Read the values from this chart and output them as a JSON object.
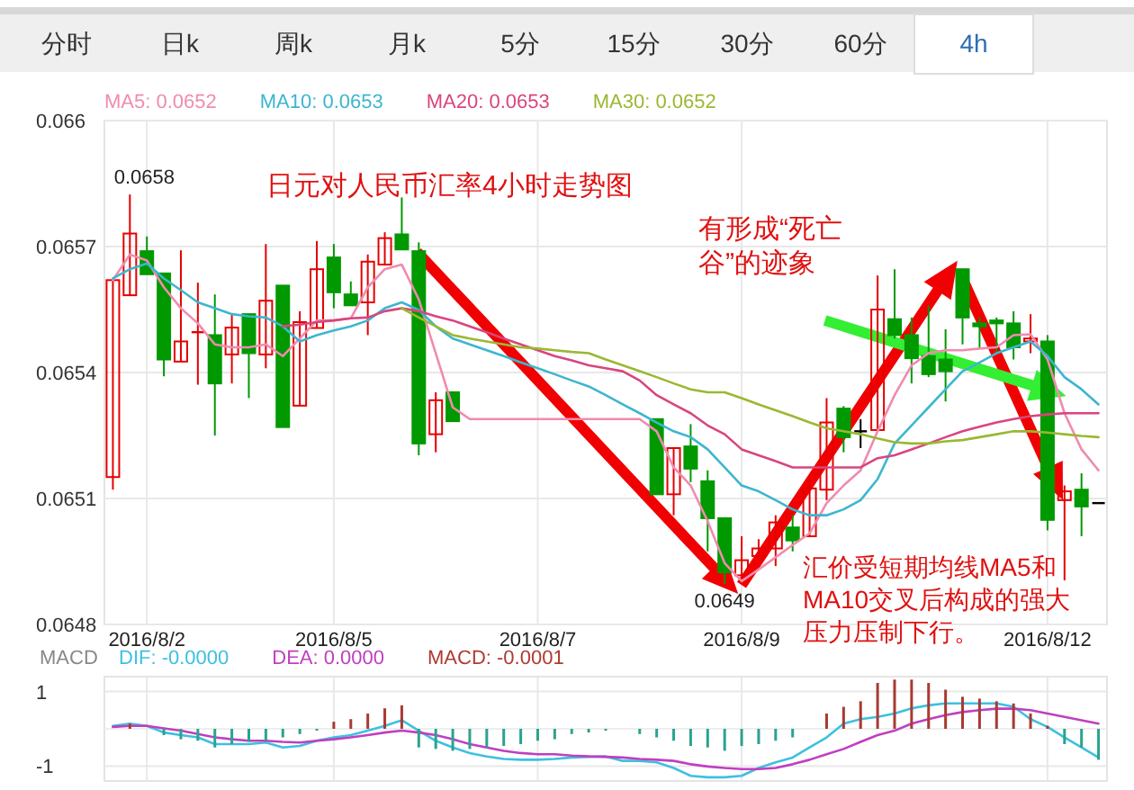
{
  "chart_data": [
    {
      "type": "other",
      "annotations": [
        "分时",
        "日k",
        "周k",
        "月k",
        "5分",
        "15分",
        "30分",
        "60分",
        "4h"
      ]
    },
    {
      "type": "candlestick",
      "title": "日元对人民币汇率4小时走势图",
      "categories": [
        null,
        null,
        "2016/8/2",
        null,
        null,
        null,
        null,
        null,
        null,
        null,
        null,
        null,
        null,
        "2016/8/5",
        null,
        null,
        null,
        null,
        null,
        null,
        null,
        null,
        null,
        null,
        null,
        "2016/8/7",
        null,
        null,
        null,
        null,
        null,
        null,
        null,
        null,
        null,
        null,
        null,
        "2016/8/9",
        null,
        null,
        null,
        null,
        null,
        null,
        null,
        null,
        null,
        null,
        null,
        null,
        null,
        null,
        null,
        null,
        null,
        "2016/8/12",
        null,
        null,
        null
      ],
      "ohlc": [
        [
          0.065151,
          0.06562,
          0.065121,
          0.06562
        ],
        [
          0.065584,
          0.065824,
          0.065584,
          0.065731
        ],
        [
          0.065689,
          0.065724,
          0.065634,
          0.065634
        ],
        [
          0.065636,
          0.065636,
          0.065391,
          0.065431
        ],
        [
          0.065426,
          0.065691,
          0.065426,
          0.065474
        ],
        [
          0.065496,
          0.065614,
          0.065371,
          0.065496
        ],
        [
          0.065489,
          0.065586,
          0.06525,
          0.065374
        ],
        [
          0.065443,
          0.06554,
          0.065374,
          0.065507
        ],
        [
          0.065539,
          0.065539,
          0.065339,
          0.065446
        ],
        [
          0.065443,
          0.065706,
          0.06541,
          0.065571
        ],
        [
          0.065607,
          0.065607,
          0.06527,
          0.06527
        ],
        [
          0.065321,
          0.065546,
          0.065321,
          0.06552
        ],
        [
          0.065506,
          0.065713,
          0.065506,
          0.065646
        ],
        [
          0.065674,
          0.065706,
          0.065553,
          0.065591
        ],
        [
          0.065586,
          0.065617,
          0.06556,
          0.06556
        ],
        [
          0.065567,
          0.065681,
          0.065489,
          0.065664
        ],
        [
          0.065657,
          0.065734,
          0.065657,
          0.06572
        ],
        [
          0.065729,
          0.065817,
          0.065693,
          0.065693
        ],
        [
          0.065689,
          0.06571,
          0.065203,
          0.065231
        ],
        [
          0.065253,
          0.065353,
          0.06521,
          0.065334
        ],
        [
          0.065353,
          0.065353,
          0.065284,
          0.065284
        ],
        null,
        null,
        null,
        null,
        null,
        null,
        null,
        null,
        null,
        null,
        null,
        [
          0.065289,
          0.065289,
          0.06511,
          0.06511
        ],
        [
          0.06511,
          0.06522,
          0.06506,
          0.06522
        ],
        [
          0.065224,
          0.065277,
          0.065139,
          0.065171
        ],
        [
          0.065141,
          0.065167,
          0.064974,
          0.065053
        ],
        [
          0.065053,
          0.065053,
          0.064896,
          0.064924
        ],
        [
          0.064917,
          0.06501,
          0.064903,
          0.064953
        ],
        [
          0.064963,
          0.065003,
          0.06496,
          0.064981
        ],
        [
          0.064981,
          0.06506,
          0.064939,
          0.065043
        ],
        [
          0.065031,
          0.06506,
          0.064974,
          0.065
        ],
        [
          0.06501,
          0.065146,
          0.06501,
          0.065124
        ],
        [
          0.065121,
          0.065339,
          0.065096,
          0.065281
        ],
        [
          0.065314,
          0.06532,
          0.06521,
          0.065246
        ],
        [
          0.06526,
          0.065289,
          0.06522,
          0.06526
        ],
        [
          0.065263,
          0.065631,
          0.065263,
          0.06555
        ],
        [
          0.065527,
          0.065646,
          0.065481,
          0.065489
        ],
        [
          0.065489,
          0.065531,
          0.065374,
          0.065434
        ],
        [
          0.065439,
          0.06556,
          0.065389,
          0.065396
        ],
        [
          0.065431,
          0.065503,
          0.065331,
          0.065403
        ],
        [
          0.065646,
          0.065646,
          0.065467,
          0.065531
        ],
        [
          0.065517,
          0.065531,
          0.06546,
          0.06551
        ],
        [
          0.065524,
          0.065531,
          0.065446,
          0.065517
        ],
        [
          0.065517,
          0.065546,
          0.065431,
          0.06546
        ],
        [
          0.065474,
          0.065539,
          0.065446,
          0.065481
        ],
        [
          0.065474,
          0.065489,
          0.065024,
          0.065049
        ],
        [
          0.065096,
          0.065131,
          0.064905,
          0.065117
        ],
        [
          0.065121,
          0.06516,
          0.06501,
          0.065081
        ],
        [
          0.065089,
          0.065089,
          0.065089,
          0.065089
        ]
      ],
      "colors": [
        "#e60000",
        "#e60000",
        "#009900",
        "#009900",
        "#e60000",
        "#e60000",
        "#009900",
        "#e60000",
        "#009900",
        "#e60000",
        "#009900",
        "#e60000",
        "#e60000",
        "#009900",
        "#009900",
        "#e60000",
        "#e60000",
        "#009900",
        "#009900",
        "#e60000",
        "#009900",
        null,
        null,
        null,
        null,
        null,
        null,
        null,
        null,
        null,
        null,
        null,
        "#009900",
        "#e60000",
        "#009900",
        "#009900",
        "#009900",
        "#e60000",
        "#e60000",
        "#e60000",
        "#009900",
        "#e60000",
        "#e60000",
        "#009900",
        "#000000",
        "#e60000",
        "#009900",
        "#009900",
        "#009900",
        "#009900",
        "#009900",
        "#009900",
        "#009900",
        "#009900",
        "#e60000",
        "#009900",
        "#e60000",
        "#009900",
        "#000000"
      ],
      "series": [
        {
          "name": "MA5: 0.0652",
          "type": "line",
          "color": "#f08bb0",
          "values": [
            0.06562,
            0.065681,
            0.065667,
            0.065603,
            0.065553,
            0.065517,
            0.065467,
            0.06546,
            0.06546,
            0.065467,
            0.065439,
            0.065481,
            0.065524,
            0.065524,
            0.065529,
            0.065603,
            0.065646,
            0.065657,
            0.065574,
            0.065446,
            0.065317,
            0.065289,
            0.065289,
            0.065289,
            0.065289,
            0.065289,
            0.065289,
            0.065289,
            0.065289,
            0.065289,
            0.065289,
            0.065289,
            0.06526,
            0.065174,
            0.065131,
            0.065046,
            0.064946,
            0.064903,
            0.064931,
            0.06496,
            0.064989,
            0.065017,
            0.065089,
            0.065131,
            0.065167,
            0.06526,
            0.065346,
            0.065417,
            0.065446,
            0.065453,
            0.065453,
            0.065457,
            0.06546,
            0.065489,
            0.065491,
            0.065431,
            0.065303,
            0.065217,
            0.065167
          ]
        },
        {
          "name": "MA10: 0.0653",
          "type": "line",
          "color": "#3cb6cf",
          "values": [
            0.065624,
            0.065646,
            0.06566,
            0.065624,
            0.065596,
            0.065567,
            0.065553,
            0.065539,
            0.065534,
            0.065531,
            0.06551,
            0.065474,
            0.065489,
            0.0655,
            0.06551,
            0.065524,
            0.065553,
            0.065567,
            0.065549,
            0.06551,
            0.065481,
            0.065467,
            0.065453,
            0.065439,
            0.065424,
            0.06541,
            0.065396,
            0.065381,
            0.065367,
            0.065346,
            0.065324,
            0.065303,
            0.065281,
            0.06526,
            0.065246,
            0.065217,
            0.065174,
            0.065131,
            0.065117,
            0.065096,
            0.065074,
            0.06506,
            0.06506,
            0.065074,
            0.065096,
            0.065146,
            0.065231,
            0.065274,
            0.065317,
            0.06536,
            0.065403,
            0.065424,
            0.065446,
            0.06546,
            0.065474,
            0.065439,
            0.065389,
            0.06536,
            0.065324
          ]
        },
        {
          "name": "MA20: 0.0653",
          "type": "line",
          "color": "#d9457f",
          "values": [
            null,
            null,
            null,
            null,
            null,
            null,
            null,
            null,
            null,
            null,
            0.06551,
            0.065514,
            0.06552,
            0.065524,
            0.065529,
            0.065531,
            0.065546,
            0.065553,
            0.065546,
            0.065534,
            0.065524,
            0.06551,
            0.065496,
            0.065481,
            0.065467,
            0.065453,
            0.065439,
            0.065429,
            0.065417,
            0.06541,
            0.065403,
            0.065381,
            0.065346,
            0.065324,
            0.065303,
            0.065274,
            0.065253,
            0.065217,
            0.065203,
            0.065189,
            0.065174,
            0.065174,
            0.065174,
            0.065174,
            0.065174,
            0.065196,
            0.065203,
            0.065217,
            0.065231,
            0.065246,
            0.06526,
            0.065271,
            0.065281,
            0.065289,
            0.065296,
            0.0653,
            0.065303,
            0.065303,
            0.065303
          ]
        },
        {
          "name": "MA30: 0.0652",
          "type": "line",
          "color": "#9ab832",
          "values": [
            null,
            null,
            null,
            null,
            null,
            null,
            null,
            null,
            null,
            null,
            null,
            null,
            null,
            null,
            null,
            null,
            null,
            0.065553,
            0.065531,
            0.06551,
            0.065489,
            0.065481,
            0.065474,
            0.065467,
            0.06546,
            0.065457,
            0.065453,
            0.065449,
            0.065446,
            0.065431,
            0.065417,
            0.065403,
            0.065389,
            0.065374,
            0.06536,
            0.065353,
            0.065353,
            0.065339,
            0.065324,
            0.06531,
            0.065296,
            0.065281,
            0.065267,
            0.06526,
            0.065253,
            0.065243,
            0.065234,
            0.065231,
            0.065231,
            0.065236,
            0.065239,
            0.065246,
            0.065253,
            0.06526,
            0.06526,
            0.065257,
            0.065253,
            0.065249,
            0.065246
          ]
        }
      ],
      "ylim": [
        0.0648,
        0.066
      ],
      "yticks": [
        0.0648,
        0.0651,
        0.0654,
        0.0657,
        0.066
      ],
      "grid": true,
      "legend": "top",
      "annotations": [
        "0.0658",
        "0.0649",
        "有形成“死亡谷”的迹象",
        "汇价受短期均线MA5和MA10交叉后构成的强大压力压制下行。"
      ]
    },
    {
      "type": "bar",
      "title": "MACD",
      "categories": [
        null,
        null,
        "2016/8/2",
        null,
        null,
        null,
        null,
        null,
        null,
        null,
        null,
        null,
        null,
        "2016/8/5",
        null,
        null,
        null,
        null,
        null,
        null,
        null,
        null,
        null,
        null,
        null,
        "2016/8/7",
        null,
        null,
        null,
        null,
        null,
        null,
        null,
        null,
        null,
        null,
        null,
        "2016/8/9",
        null,
        null,
        null,
        null,
        null,
        null,
        null,
        null,
        null,
        null,
        null,
        null,
        null,
        null,
        null,
        null,
        null,
        "2016/8/12",
        null,
        null,
        null
      ],
      "tick_labels": "y",
      "series": [
        {
          "name": "DIF: -0.0000",
          "type": "line",
          "color": "#3ec0e0",
          "values": [
            0.08,
            0.14,
            0.08,
            -0.1,
            -0.17,
            -0.23,
            -0.41,
            -0.41,
            -0.41,
            -0.37,
            -0.5,
            -0.46,
            -0.32,
            -0.23,
            -0.17,
            -0.05,
            0.08,
            0.23,
            -0.05,
            -0.32,
            -0.5,
            -0.65,
            -0.74,
            -0.81,
            -0.83,
            -0.83,
            -0.81,
            -0.77,
            -0.75,
            -0.74,
            -0.86,
            -0.86,
            -0.9,
            -1.05,
            -1.26,
            -1.3,
            -1.3,
            -1.26,
            -1.05,
            -0.9,
            -0.77,
            -0.5,
            -0.23,
            0.14,
            0.26,
            0.32,
            0.41,
            0.55,
            0.63,
            0.68,
            0.68,
            0.68,
            0.68,
            0.59,
            0.26,
            0.05,
            -0.23,
            -0.5,
            -0.77
          ]
        },
        {
          "name": "DEA: 0.0000",
          "type": "line",
          "color": "#c03fc0",
          "values": [
            0.05,
            0.08,
            0.08,
            0.01,
            -0.05,
            -0.14,
            -0.23,
            -0.28,
            -0.32,
            -0.32,
            -0.35,
            -0.37,
            -0.32,
            -0.28,
            -0.23,
            -0.17,
            -0.1,
            -0.05,
            -0.1,
            -0.17,
            -0.28,
            -0.41,
            -0.5,
            -0.59,
            -0.65,
            -0.68,
            -0.68,
            -0.72,
            -0.74,
            -0.75,
            -0.77,
            -0.81,
            -0.83,
            -0.86,
            -0.95,
            -1.01,
            -1.05,
            -1.08,
            -1.08,
            -1.05,
            -0.95,
            -0.83,
            -0.68,
            -0.54,
            -0.35,
            -0.17,
            -0.05,
            0.14,
            0.26,
            0.37,
            0.45,
            0.5,
            0.54,
            0.54,
            0.5,
            0.41,
            0.32,
            0.23,
            0.14
          ]
        },
        {
          "name": "MACD: -0.0001",
          "type": "bar",
          "color": "#b03a30",
          "values": [
            null,
            0.14,
            null,
            -0.17,
            -0.28,
            -0.32,
            -0.5,
            -0.41,
            -0.35,
            -0.32,
            -0.23,
            -0.14,
            -0.05,
            0.19,
            0.26,
            0.41,
            0.55,
            0.63,
            -0.5,
            -0.54,
            -0.59,
            -0.54,
            -0.5,
            -0.46,
            -0.41,
            -0.32,
            -0.28,
            -0.14,
            -0.1,
            -0.05,
            null,
            -0.14,
            -0.23,
            -0.32,
            -0.46,
            -0.5,
            -0.59,
            -0.46,
            -0.41,
            -0.32,
            -0.23,
            null,
            0.41,
            0.59,
            0.74,
            1.23,
            1.32,
            1.32,
            1.23,
            1.05,
            0.86,
            0.81,
            0.74,
            0.68,
            0.41,
            0.08,
            -0.41,
            -0.5,
            -0.83
          ],
          "colors": [
            null,
            "#a83a32",
            null,
            "#2aa38e",
            "#2aa38e",
            "#2aa38e",
            "#2aa38e",
            "#2aa38e",
            "#2aa38e",
            "#2aa38e",
            "#2aa38e",
            "#2aa38e",
            "#2aa38e",
            "#a83a32",
            "#a83a32",
            "#a83a32",
            "#a83a32",
            "#a83a32",
            "#2aa38e",
            "#2aa38e",
            "#2aa38e",
            "#2aa38e",
            "#2aa38e",
            "#2aa38e",
            "#2aa38e",
            "#2aa38e",
            "#2aa38e",
            "#2aa38e",
            "#2aa38e",
            "#2aa38e",
            null,
            "#2aa38e",
            "#2aa38e",
            "#2aa38e",
            "#2aa38e",
            "#2aa38e",
            "#2aa38e",
            "#2aa38e",
            "#2aa38e",
            "#2aa38e",
            "#2aa38e",
            null,
            "#a83a32",
            "#a83a32",
            "#a83a32",
            "#a83a32",
            "#a83a32",
            "#a83a32",
            "#a83a32",
            "#a83a32",
            "#a83a32",
            "#a83a32",
            "#a83a32",
            "#a83a32",
            "#a83a32",
            "#a83a32",
            "#2aa38e",
            "#2aa38e",
            "#2aa38e"
          ]
        }
      ],
      "ylim": [
        -1.4,
        1.4
      ],
      "yticks": [
        1,
        -1
      ],
      "grid": true,
      "legend": "top left"
    }
  ]
}
